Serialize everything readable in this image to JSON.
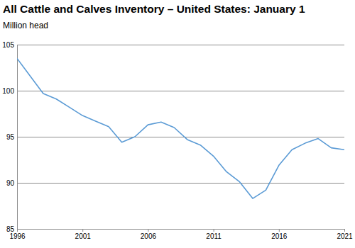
{
  "chart_data": {
    "type": "line",
    "title": "All Cattle and Calves Inventory – United States: January 1",
    "subtitle": "Million head",
    "x": [
      1996,
      1997,
      1998,
      1999,
      2000,
      2001,
      2002,
      2003,
      2004,
      2005,
      2006,
      2007,
      2008,
      2009,
      2010,
      2011,
      2012,
      2013,
      2014,
      2015,
      2016,
      2017,
      2018,
      2019,
      2020,
      2021
    ],
    "values": [
      103.5,
      101.6,
      99.7,
      99.1,
      98.2,
      97.3,
      96.7,
      96.1,
      94.4,
      95.0,
      96.3,
      96.6,
      96.0,
      94.7,
      94.1,
      92.9,
      91.2,
      90.1,
      88.3,
      89.2,
      91.9,
      93.6,
      94.3,
      94.8,
      93.8,
      93.6
    ],
    "color": "#5b9bd5",
    "xlim": [
      1996,
      2021
    ],
    "xticks": [
      1996,
      2001,
      2006,
      2011,
      2016,
      2021
    ],
    "ylim": [
      85,
      105
    ],
    "yticks": [
      85,
      90,
      95,
      100,
      105
    ],
    "grid": true
  }
}
